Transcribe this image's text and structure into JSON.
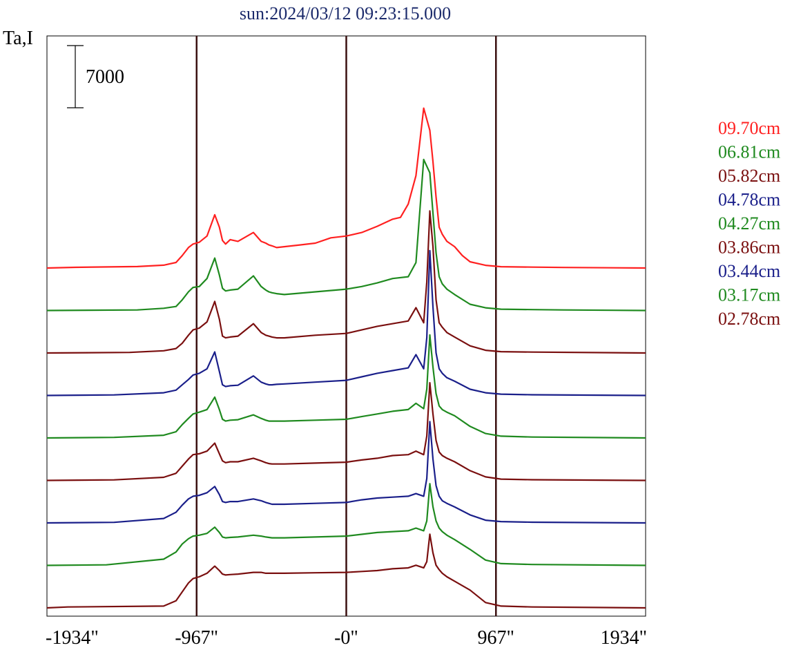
{
  "chart_data": {
    "type": "line",
    "title": "sun:2024/03/12 09:23:15.000",
    "ylabel": "Ta,I",
    "xlabel": "",
    "xlim": [
      -1934,
      1934
    ],
    "x_ticks": [
      {
        "value": -1934,
        "label": "-1934\""
      },
      {
        "value": -967,
        "label": "-967\""
      },
      {
        "value": 0,
        "label": "-0\""
      },
      {
        "value": 967,
        "label": "967\""
      },
      {
        "value": 1934,
        "label": "1934\""
      }
    ],
    "vertical_lines": [
      -967,
      0,
      967
    ],
    "scale_bar": {
      "value": 7000,
      "label": "7000"
    },
    "legend_position": "right",
    "series": [
      {
        "name": "09.70cm",
        "color": "#ff2020",
        "offset": 8,
        "x": [
          -1934,
          -1750,
          -1350,
          -1180,
          -1100,
          -1060,
          -1020,
          -990,
          -950,
          -900,
          -850,
          -820,
          -800,
          -780,
          -750,
          -700,
          -600,
          -550,
          -520,
          -500,
          -480,
          -450,
          -400,
          -300,
          -200,
          -100,
          0,
          100,
          200,
          300,
          350,
          400,
          450,
          500,
          540,
          560,
          580,
          600,
          620,
          650,
          700,
          750,
          800,
          900,
          1000,
          1200,
          1400,
          1934
        ],
        "y": [
          0,
          80,
          160,
          320,
          620,
          1400,
          2300,
          2700,
          2900,
          3600,
          6000,
          4600,
          3100,
          2700,
          3200,
          3000,
          4000,
          3000,
          2800,
          2600,
          2500,
          2300,
          2400,
          2600,
          2800,
          3400,
          3600,
          4000,
          4700,
          5500,
          5700,
          7200,
          10400,
          18000,
          15500,
          12000,
          8000,
          4600,
          3800,
          3000,
          2400,
          1400,
          700,
          300,
          150,
          100,
          60,
          0
        ]
      },
      {
        "name": "06.81cm",
        "color": "#1f8a1f",
        "offset": 7,
        "x": [
          -1934,
          -1350,
          -1180,
          -1100,
          -1060,
          -1020,
          -990,
          -950,
          -900,
          -850,
          -820,
          -800,
          -780,
          -750,
          -700,
          -600,
          -550,
          -520,
          -500,
          -480,
          -450,
          -400,
          -200,
          0,
          100,
          200,
          300,
          400,
          450,
          500,
          540,
          560,
          580,
          600,
          620,
          650,
          700,
          800,
          900,
          1000,
          1200,
          1400,
          1934
        ],
        "y": [
          0,
          60,
          250,
          450,
          1200,
          2100,
          2600,
          2700,
          3600,
          5900,
          4000,
          2500,
          2200,
          2300,
          2400,
          3900,
          2700,
          2300,
          2100,
          2000,
          1900,
          1800,
          2100,
          2400,
          2700,
          3100,
          3600,
          3800,
          5400,
          17000,
          15500,
          11000,
          6500,
          3800,
          3000,
          2400,
          1800,
          700,
          300,
          150,
          100,
          60,
          0
        ]
      },
      {
        "name": "05.82cm",
        "color": "#7a0f0f",
        "offset": 6,
        "x": [
          -1934,
          -1400,
          -1180,
          -1100,
          -1060,
          -1020,
          -990,
          -950,
          -900,
          -850,
          -820,
          -800,
          -780,
          -750,
          -700,
          -600,
          -550,
          -520,
          -500,
          -480,
          -450,
          -400,
          -200,
          0,
          100,
          200,
          300,
          400,
          450,
          500,
          520,
          540,
          560,
          580,
          600,
          620,
          650,
          700,
          800,
          900,
          1000,
          1200,
          1934
        ],
        "y": [
          0,
          60,
          250,
          500,
          1100,
          2000,
          2600,
          2800,
          3500,
          5800,
          3800,
          1900,
          1700,
          1800,
          1900,
          3300,
          2300,
          2000,
          1900,
          1800,
          1700,
          1700,
          2000,
          2200,
          2600,
          3000,
          3300,
          3600,
          5100,
          3400,
          8000,
          16000,
          12000,
          6000,
          3400,
          2900,
          2300,
          1800,
          800,
          300,
          150,
          100,
          0
        ]
      },
      {
        "name": "04.78cm",
        "color": "#1a1f8a",
        "offset": 5,
        "x": [
          -1934,
          -1500,
          -1180,
          -1100,
          -1060,
          -1020,
          -990,
          -950,
          -900,
          -850,
          -820,
          -800,
          -780,
          -750,
          -700,
          -600,
          -550,
          -520,
          -500,
          -480,
          -450,
          -400,
          -200,
          0,
          100,
          200,
          300,
          400,
          450,
          500,
          520,
          540,
          560,
          580,
          600,
          620,
          650,
          700,
          800,
          900,
          1000,
          1200,
          1934
        ],
        "y": [
          0,
          60,
          300,
          600,
          1200,
          1800,
          2300,
          2500,
          3000,
          4900,
          2700,
          1200,
          1000,
          1100,
          1150,
          2200,
          1500,
          1300,
          1200,
          1200,
          1250,
          1300,
          1500,
          1700,
          2100,
          2500,
          2800,
          3100,
          4600,
          3000,
          6500,
          16300,
          10000,
          4800,
          3000,
          2500,
          2000,
          1600,
          700,
          300,
          150,
          80,
          0
        ]
      },
      {
        "name": "04.27cm",
        "color": "#1f8a1f",
        "offset": 4,
        "x": [
          -1934,
          -1500,
          -1180,
          -1100,
          -1060,
          -1020,
          -990,
          -950,
          -900,
          -850,
          -820,
          -800,
          -780,
          -750,
          -700,
          -600,
          -550,
          -520,
          -500,
          -480,
          -450,
          -400,
          -200,
          0,
          100,
          200,
          300,
          400,
          450,
          500,
          520,
          540,
          560,
          580,
          600,
          620,
          650,
          700,
          800,
          900,
          1000,
          1200,
          1934
        ],
        "y": [
          0,
          60,
          300,
          700,
          1500,
          2200,
          2700,
          2900,
          3200,
          4600,
          3200,
          2100,
          1900,
          2000,
          2050,
          2600,
          2200,
          2000,
          1900,
          1900,
          1900,
          1900,
          2000,
          2100,
          2400,
          2700,
          3000,
          3200,
          3900,
          3300,
          5500,
          11600,
          8000,
          5000,
          3600,
          3200,
          2900,
          2500,
          1300,
          500,
          200,
          100,
          0
        ]
      },
      {
        "name": "03.86cm",
        "color": "#7a0f0f",
        "offset": 3,
        "x": [
          -1934,
          -1500,
          -1180,
          -1100,
          -1060,
          -1020,
          -990,
          -950,
          -900,
          -850,
          -820,
          -800,
          -780,
          -750,
          -700,
          -600,
          -550,
          -520,
          -500,
          -480,
          -450,
          -400,
          -200,
          0,
          100,
          200,
          300,
          400,
          450,
          500,
          520,
          540,
          560,
          580,
          600,
          620,
          650,
          700,
          800,
          900,
          1000,
          1200,
          1934
        ],
        "y": [
          0,
          60,
          350,
          800,
          1600,
          2400,
          2900,
          3000,
          3300,
          4200,
          3000,
          2200,
          2000,
          2100,
          2100,
          2500,
          2200,
          2000,
          1900,
          1850,
          1850,
          1850,
          1950,
          2050,
          2300,
          2500,
          2800,
          2900,
          3300,
          2900,
          5000,
          11000,
          7500,
          4500,
          3200,
          2800,
          2500,
          2100,
          1100,
          400,
          150,
          80,
          0
        ]
      },
      {
        "name": "03.44cm",
        "color": "#1a1f8a",
        "offset": 2,
        "x": [
          -1934,
          -1500,
          -1180,
          -1100,
          -1060,
          -1020,
          -990,
          -950,
          -900,
          -850,
          -820,
          -800,
          -780,
          -750,
          -700,
          -600,
          -550,
          -520,
          -500,
          -480,
          -450,
          -400,
          -200,
          0,
          100,
          200,
          300,
          400,
          450,
          500,
          520,
          540,
          560,
          580,
          600,
          620,
          650,
          700,
          800,
          900,
          1000,
          1200,
          1934
        ],
        "y": [
          0,
          60,
          500,
          1200,
          2000,
          2700,
          3000,
          3100,
          3400,
          4100,
          3200,
          2400,
          2300,
          2400,
          2400,
          2700,
          2500,
          2300,
          2200,
          2100,
          2100,
          2100,
          2200,
          2300,
          2600,
          2800,
          2900,
          3000,
          3300,
          3000,
          5000,
          11400,
          7200,
          4200,
          3000,
          2500,
          2200,
          1800,
          900,
          300,
          150,
          80,
          0
        ]
      },
      {
        "name": "03.17cm",
        "color": "#1f8a1f",
        "offset": 1,
        "x": [
          -1934,
          -1550,
          -1180,
          -1100,
          -1060,
          -1020,
          -990,
          -950,
          -900,
          -850,
          -820,
          -800,
          -780,
          -750,
          -700,
          -600,
          -550,
          -520,
          -500,
          -480,
          -450,
          -400,
          -200,
          0,
          100,
          200,
          300,
          400,
          450,
          500,
          520,
          540,
          560,
          580,
          600,
          620,
          650,
          700,
          800,
          900,
          1000,
          1200,
          1934
        ],
        "y": [
          0,
          60,
          700,
          1500,
          2400,
          3000,
          3300,
          3400,
          3600,
          4300,
          3700,
          3200,
          3100,
          3150,
          3200,
          3400,
          3300,
          3200,
          3150,
          3100,
          3100,
          3100,
          3200,
          3300,
          3500,
          3700,
          3800,
          3900,
          4200,
          3900,
          5000,
          9200,
          6600,
          5000,
          4200,
          3800,
          3400,
          2900,
          1800,
          600,
          200,
          100,
          0
        ]
      },
      {
        "name": "02.78cm",
        "color": "#7a0f0f",
        "offset": 0,
        "x": [
          -1934,
          -1800,
          -1180,
          -1100,
          -1060,
          -1020,
          -990,
          -950,
          -900,
          -850,
          -820,
          -800,
          -780,
          -750,
          -700,
          -600,
          -550,
          -520,
          -500,
          -480,
          -450,
          -400,
          -200,
          0,
          100,
          200,
          300,
          400,
          450,
          500,
          520,
          540,
          560,
          580,
          600,
          620,
          650,
          700,
          800,
          900,
          1000,
          1200,
          1934
        ],
        "y": [
          0,
          100,
          200,
          800,
          1800,
          2800,
          3300,
          3500,
          3900,
          4700,
          4200,
          3800,
          3700,
          3750,
          3800,
          4000,
          4000,
          3900,
          3900,
          3900,
          3900,
          3900,
          3950,
          4000,
          4100,
          4200,
          4400,
          4500,
          4800,
          4500,
          5200,
          8300,
          6200,
          4800,
          4300,
          3900,
          3500,
          3000,
          2000,
          600,
          200,
          100,
          0
        ]
      }
    ]
  }
}
